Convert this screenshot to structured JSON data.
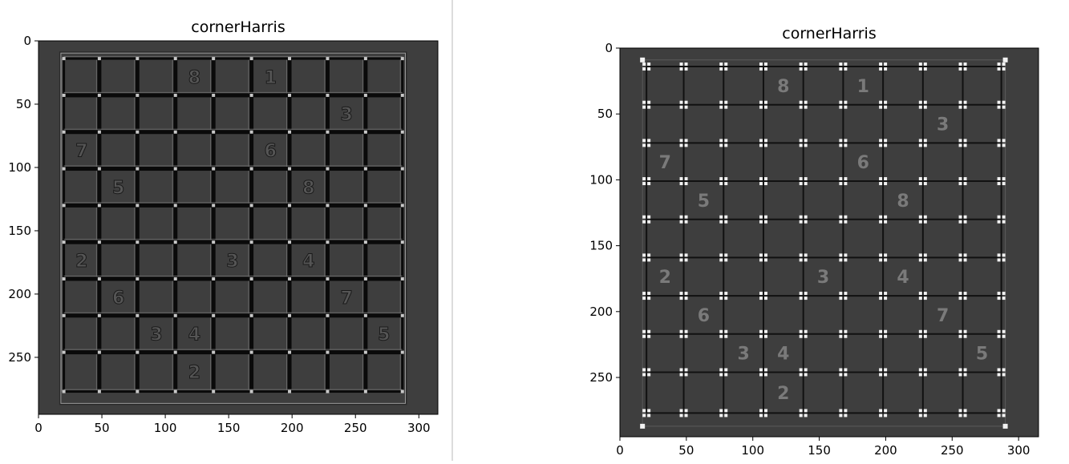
{
  "panels": [
    {
      "title": "cornerHarris",
      "image_shape": [
        295,
        315
      ],
      "xticks": [
        0,
        50,
        100,
        150,
        200,
        250,
        300
      ],
      "yticks": [
        0,
        50,
        100,
        150,
        200,
        250
      ],
      "board_extent": [
        17,
        290,
        9,
        287
      ],
      "grid_x": [
        20,
        48,
        78,
        108,
        138,
        168,
        198,
        228,
        258,
        287
      ],
      "grid_y": [
        14,
        43,
        72,
        101,
        130,
        159,
        188,
        217,
        246,
        277
      ],
      "style": "edges",
      "digits": [
        {
          "row": 0,
          "col": 5,
          "digit": "1"
        },
        {
          "row": 0,
          "col": 3,
          "digit": "8"
        },
        {
          "row": 1,
          "col": 7,
          "digit": "3"
        },
        {
          "row": 2,
          "col": 0,
          "digit": "7"
        },
        {
          "row": 2,
          "col": 5,
          "digit": "6"
        },
        {
          "row": 3,
          "col": 1,
          "digit": "5"
        },
        {
          "row": 3,
          "col": 6,
          "digit": "8"
        },
        {
          "row": 5,
          "col": 0,
          "digit": "2"
        },
        {
          "row": 5,
          "col": 4,
          "digit": "3"
        },
        {
          "row": 5,
          "col": 6,
          "digit": "4"
        },
        {
          "row": 6,
          "col": 1,
          "digit": "6"
        },
        {
          "row": 6,
          "col": 7,
          "digit": "7"
        },
        {
          "row": 7,
          "col": 3,
          "digit": "4"
        },
        {
          "row": 7,
          "col": 2,
          "digit": "3"
        },
        {
          "row": 7,
          "col": 8,
          "digit": "5"
        },
        {
          "row": 8,
          "col": 3,
          "digit": "2"
        }
      ]
    },
    {
      "title": "cornerHarris",
      "image_shape": [
        295,
        315
      ],
      "xticks": [
        0,
        50,
        100,
        150,
        200,
        250,
        300
      ],
      "yticks": [
        0,
        50,
        100,
        150,
        200,
        250
      ],
      "board_extent": [
        17,
        290,
        9,
        287
      ],
      "grid_x": [
        20,
        48,
        78,
        108,
        138,
        168,
        198,
        228,
        258,
        287
      ],
      "grid_y": [
        14,
        43,
        72,
        101,
        130,
        159,
        188,
        217,
        246,
        277
      ],
      "style": "corners",
      "digits": [
        {
          "row": 0,
          "col": 5,
          "digit": "1"
        },
        {
          "row": 0,
          "col": 3,
          "digit": "8"
        },
        {
          "row": 1,
          "col": 7,
          "digit": "3"
        },
        {
          "row": 2,
          "col": 0,
          "digit": "7"
        },
        {
          "row": 2,
          "col": 5,
          "digit": "6"
        },
        {
          "row": 3,
          "col": 1,
          "digit": "5"
        },
        {
          "row": 3,
          "col": 6,
          "digit": "8"
        },
        {
          "row": 5,
          "col": 0,
          "digit": "2"
        },
        {
          "row": 5,
          "col": 4,
          "digit": "3"
        },
        {
          "row": 5,
          "col": 6,
          "digit": "4"
        },
        {
          "row": 6,
          "col": 1,
          "digit": "6"
        },
        {
          "row": 6,
          "col": 7,
          "digit": "7"
        },
        {
          "row": 7,
          "col": 3,
          "digit": "4"
        },
        {
          "row": 7,
          "col": 2,
          "digit": "3"
        },
        {
          "row": 7,
          "col": 8,
          "digit": "5"
        },
        {
          "row": 8,
          "col": 3,
          "digit": "2"
        }
      ]
    }
  ],
  "chart_data": [
    {
      "type": "heatmap",
      "title": "cornerHarris",
      "xlabel": "",
      "ylabel": "",
      "xlim": [
        0,
        315
      ],
      "ylim": [
        295,
        0
      ],
      "xticks": [
        0,
        50,
        100,
        150,
        200,
        250,
        300
      ],
      "yticks": [
        0,
        50,
        100,
        150,
        200,
        250
      ],
      "colormap": "gray",
      "grid": false
    },
    {
      "type": "heatmap",
      "title": "cornerHarris",
      "xlabel": "",
      "ylabel": "",
      "xlim": [
        0,
        315
      ],
      "ylim": [
        295,
        0
      ],
      "xticks": [
        0,
        50,
        100,
        150,
        200,
        250,
        300
      ],
      "yticks": [
        0,
        50,
        100,
        150,
        200,
        250
      ],
      "colormap": "gray",
      "grid": false
    }
  ],
  "colors": {
    "background": "#3e3e3e",
    "dark_line": "#0a0a0a",
    "bright": "#f2f2f2",
    "mid_gray": "#8a8a8a",
    "divider": "#dcdcdc"
  }
}
